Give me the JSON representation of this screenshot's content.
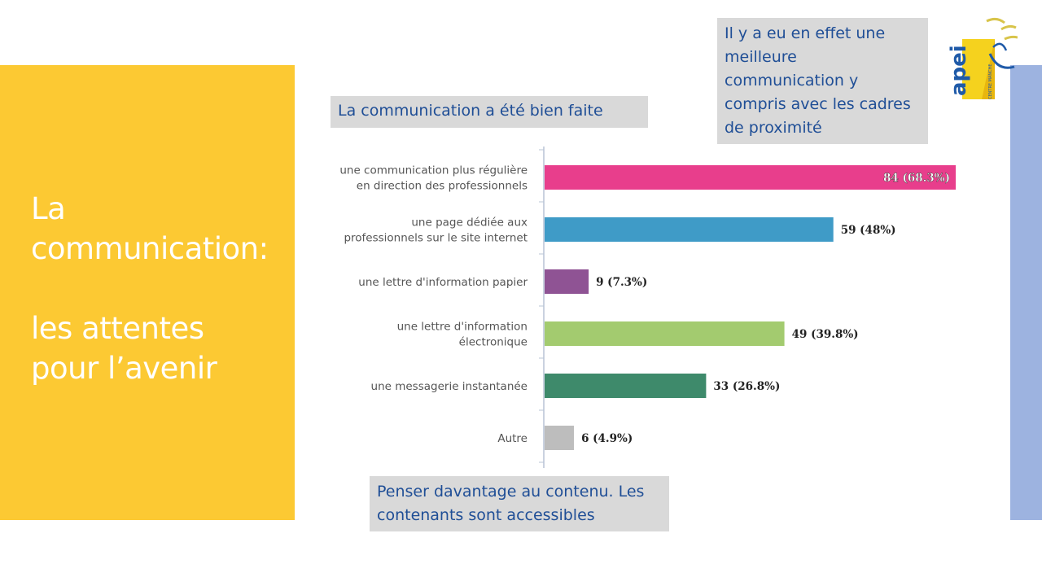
{
  "slide": {
    "title_lines": [
      "La",
      "communication:",
      "",
      "les attentes",
      "pour l’avenir"
    ]
  },
  "notes": {
    "top": "La communication a été bien faite",
    "right": "Il y a eu en effet une meilleure communication y compris avec les cadres de proximité",
    "bottom": "Penser davantage au contenu. Les contenants sont accessibles"
  },
  "logo": {
    "text": "apei",
    "subtext": "CENTRE MANCHE"
  },
  "colors": {
    "left_panel": "#fcc933",
    "right_strip": "#9db3e0",
    "note_bg": "#d9d9d9",
    "note_text": "#1f4e96"
  },
  "chart_data": {
    "type": "bar",
    "orientation": "horizontal",
    "categories": [
      [
        "une communication plus régulière",
        "en direction des professionnels"
      ],
      [
        "une page dédiée aux",
        "professionnels sur le site internet"
      ],
      [
        "une lettre d'information papier"
      ],
      [
        "une lettre d'information",
        "électronique"
      ],
      [
        "une messagerie instantanée"
      ],
      [
        "Autre"
      ]
    ],
    "values": [
      84,
      59,
      9,
      49,
      33,
      6
    ],
    "labels": [
      "84 (68.3%)",
      "59 (48%)",
      "9 (7.3%)",
      "49 (39.8%)",
      "33 (26.8%)",
      "6 (4.9%)"
    ],
    "colors": [
      "#e83e8c",
      "#3f9bc7",
      "#8f5394",
      "#a3cb6f",
      "#3e8a6b",
      "#bdbdbd"
    ],
    "xlim": [
      0,
      84
    ],
    "grid": false,
    "legend": "none"
  }
}
